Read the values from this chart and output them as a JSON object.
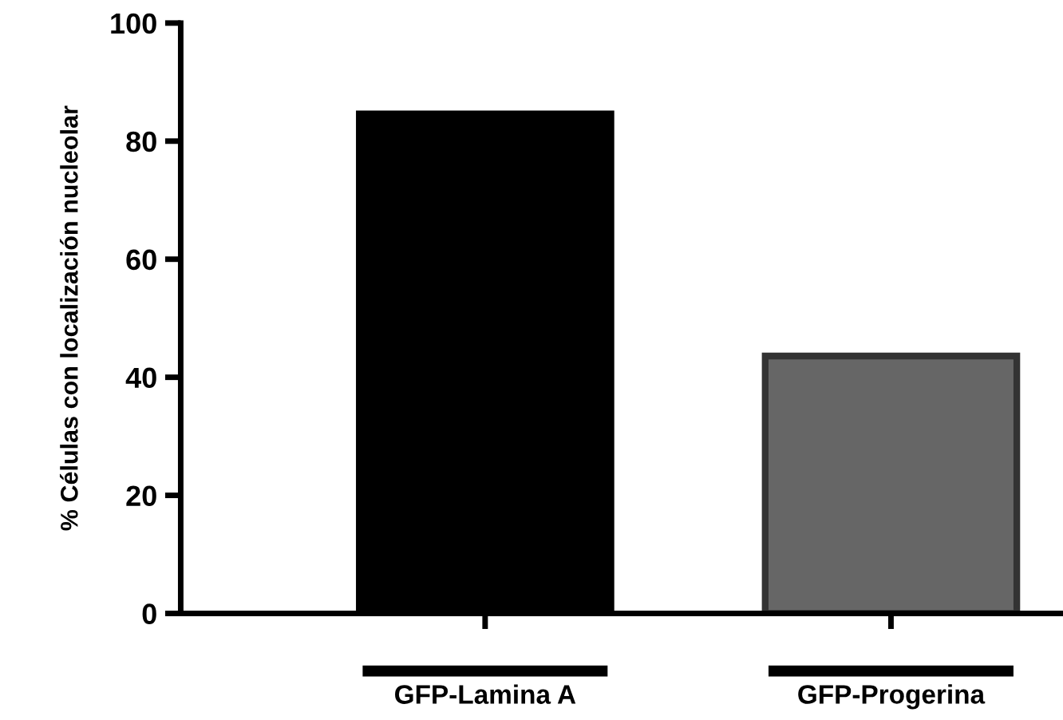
{
  "chart_data": {
    "type": "bar",
    "ylabel": "% Células con localización nucleolar",
    "categories": [
      "GFP-Lamina A",
      "GFP-Progerina"
    ],
    "values": [
      84.6,
      43.6
    ],
    "colors": [
      "#000000",
      "#666666"
    ],
    "ylim": [
      0,
      100
    ],
    "yticks": [
      0,
      20,
      40,
      60,
      80,
      100
    ],
    "grid": false,
    "legend": false
  }
}
